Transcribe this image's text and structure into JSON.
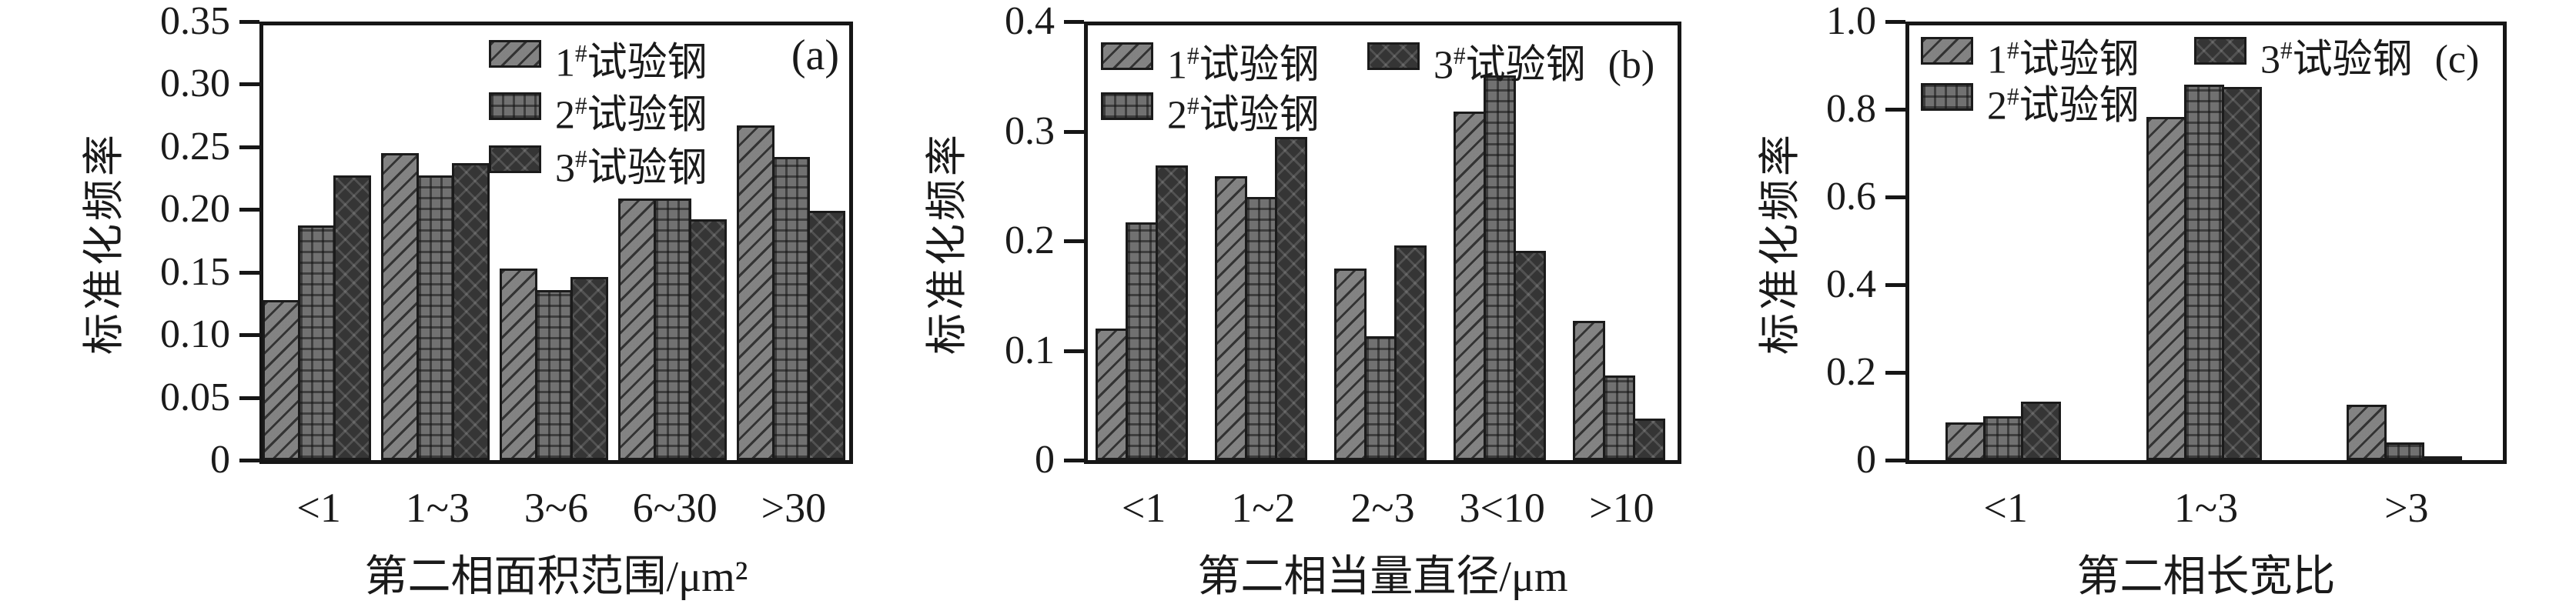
{
  "figure": {
    "background": "#ffffff",
    "ink_color": "#1a1a1a",
    "series_styles": [
      {
        "name": "1#试验钢",
        "pattern": "diagonal-hatch",
        "fill": "#7c7c7c"
      },
      {
        "name": "2#试验钢",
        "pattern": "grid-hatch",
        "fill": "#717171"
      },
      {
        "name": "3#试验钢",
        "pattern": "diamond-crosshatch",
        "fill": "#353535"
      }
    ]
  },
  "chart_data": [
    {
      "type": "bar",
      "panel_label": "(a)",
      "ylabel": "标准化频率",
      "xlabel": "第二相面积范围/μm²",
      "ylim": [
        0,
        0.35
      ],
      "ytick_labels": [
        "0",
        "0.05",
        "0.10",
        "0.15",
        "0.20",
        "0.25",
        "0.30",
        "0.35"
      ],
      "categories": [
        "<1",
        "1~3",
        "3~6",
        "6~30",
        ">30"
      ],
      "series": [
        {
          "name": "1#试验钢",
          "values": [
            0.128,
            0.245,
            0.153,
            0.209,
            0.267
          ]
        },
        {
          "name": "2#试验钢",
          "values": [
            0.187,
            0.227,
            0.136,
            0.209,
            0.242
          ]
        },
        {
          "name": "3#试验钢",
          "values": [
            0.227,
            0.237,
            0.146,
            0.192,
            0.199
          ]
        }
      ],
      "legend": {
        "layout": "vertical",
        "position": "inside-top-right",
        "letter_inline": false
      },
      "grid": false
    },
    {
      "type": "bar",
      "panel_label": "(b)",
      "ylabel": "标准化频率",
      "xlabel": "第二相当量直径/μm",
      "ylim": [
        0,
        0.4
      ],
      "ytick_labels": [
        "0",
        "0.1",
        "0.2",
        "0.3",
        "0.4"
      ],
      "categories": [
        "<1",
        "1~2",
        "2~3",
        "3<10",
        ">10"
      ],
      "series": [
        {
          "name": "1#试验钢",
          "values": [
            0.12,
            0.259,
            0.175,
            0.318,
            0.127
          ]
        },
        {
          "name": "2#试验钢",
          "values": [
            0.217,
            0.24,
            0.113,
            0.351,
            0.077
          ]
        },
        {
          "name": "3#试验钢",
          "values": [
            0.269,
            0.295,
            0.196,
            0.191,
            0.038
          ]
        }
      ],
      "legend": {
        "layout": "two-column",
        "position": "inside-top-left",
        "letter_inline": true
      },
      "grid": false
    },
    {
      "type": "bar",
      "panel_label": "(c)",
      "ylabel": "标准化频率",
      "xlabel": "第二相长宽比",
      "ylim": [
        0,
        1.0
      ],
      "ytick_labels": [
        "0",
        "0.2",
        "0.4",
        "0.6",
        "0.8",
        "1.0"
      ],
      "categories": [
        "<1",
        "1~3",
        ">3"
      ],
      "series": [
        {
          "name": "1#试验钢",
          "values": [
            0.086,
            0.782,
            0.127
          ]
        },
        {
          "name": "2#试验钢",
          "values": [
            0.1,
            0.856,
            0.04
          ]
        },
        {
          "name": "3#试验钢",
          "values": [
            0.134,
            0.851,
            0.009
          ]
        }
      ],
      "legend": {
        "layout": "two-column",
        "position": "inside-top-left",
        "letter_inline": true
      },
      "grid": false
    }
  ]
}
